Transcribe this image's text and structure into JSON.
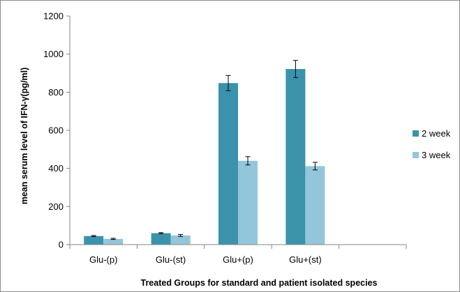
{
  "chart_data": {
    "type": "bar",
    "title": "",
    "xlabel": "Treated Groups for standard and patient isolated species",
    "ylabel": "mean serum level of IFN-γ(pg/ml)",
    "ylim": [
      0,
      1200
    ],
    "yticks": [
      0,
      200,
      400,
      600,
      800,
      1000,
      1200
    ],
    "grid": false,
    "legend_position": "right",
    "categories": [
      "Glu-(p)",
      "Glu-(st)",
      "Glu+(p)",
      "Glu+(st)",
      ""
    ],
    "series": [
      {
        "name": "2 week",
        "color": "#3a93ab",
        "values": [
          45,
          60,
          848,
          922,
          null
        ],
        "errors": [
          3,
          3,
          40,
          45,
          null
        ]
      },
      {
        "name": "3 week",
        "color": "#93c6da",
        "values": [
          30,
          48,
          440,
          412,
          null
        ],
        "errors": [
          3,
          5,
          22,
          20,
          null
        ]
      }
    ]
  }
}
